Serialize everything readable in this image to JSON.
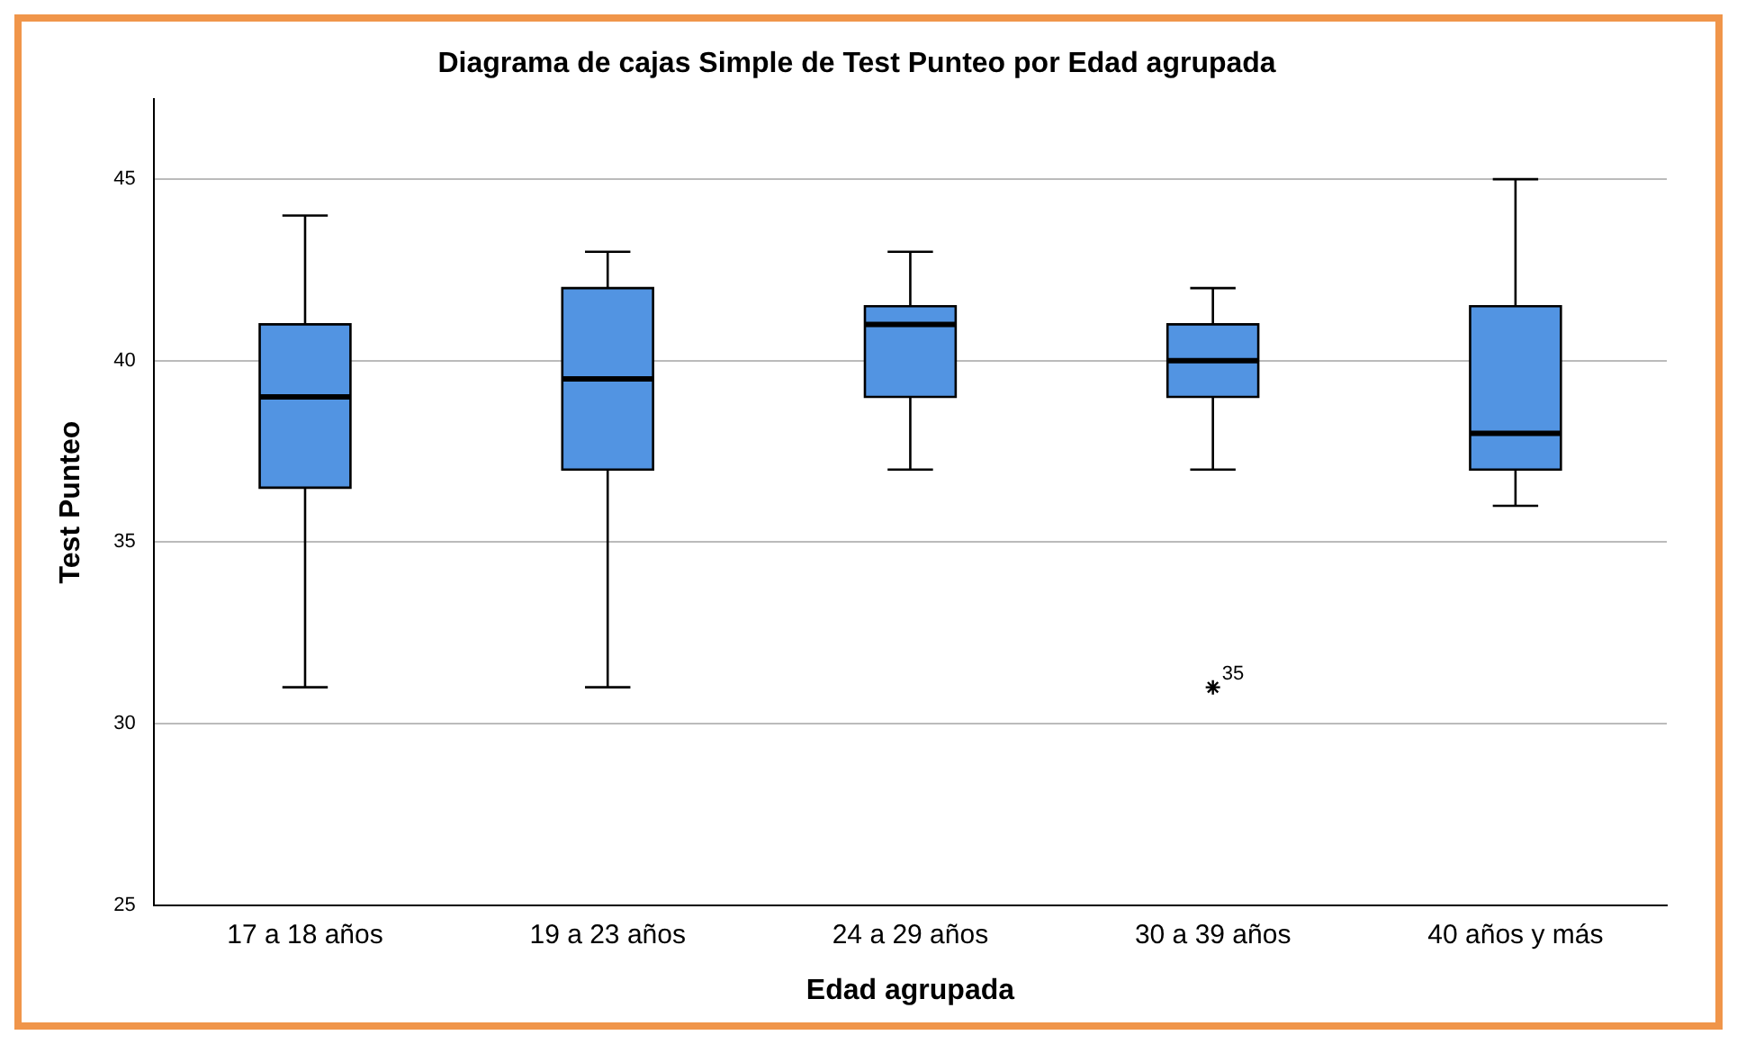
{
  "chart_data": {
    "type": "box",
    "title": "Diagrama de cajas Simple de Test Punteo por Edad agrupada",
    "xlabel": "Edad agrupada",
    "ylabel": "Test Punteo",
    "categories": [
      "17 a 18 años",
      "19 a 23 años",
      "24 a 29 años",
      "30 a 39 años",
      "40 años y más"
    ],
    "series": [
      {
        "color": "#5294e2",
        "boxes": [
          {
            "low": 31,
            "q1": 36.5,
            "median": 39,
            "q3": 41,
            "high": 44
          },
          {
            "low": 31,
            "q1": 37,
            "median": 39.5,
            "q3": 42,
            "high": 43
          },
          {
            "low": 37,
            "q1": 39,
            "median": 41,
            "q3": 41.5,
            "high": 43
          },
          {
            "low": 37,
            "q1": 39,
            "median": 40,
            "q3": 41,
            "high": 42,
            "outliers": [
              31
            ]
          },
          {
            "low": 36,
            "q1": 37,
            "median": 38,
            "q3": 41.5,
            "high": 45
          }
        ]
      }
    ],
    "annotations": [
      "35"
    ],
    "marker": "star",
    "ylim": [
      25,
      47.2
    ],
    "yticks": [
      25,
      30,
      35,
      40,
      45
    ],
    "grid": "y",
    "legend": false
  }
}
